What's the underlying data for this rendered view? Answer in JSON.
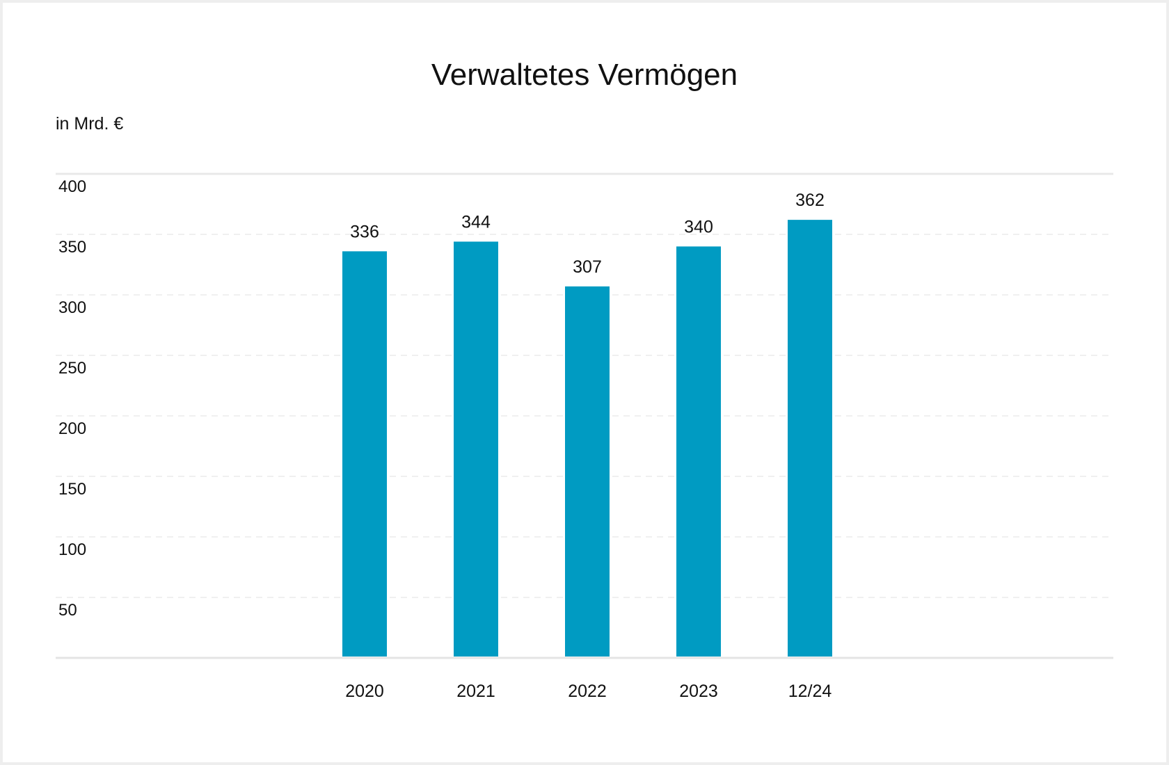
{
  "chart_data": {
    "type": "bar",
    "title": "Verwaltetes Vermögen",
    "unit_label": "in Mrd. €",
    "categories": [
      "2020",
      "2021",
      "2022",
      "2023",
      "12/24"
    ],
    "values": [
      336,
      344,
      307,
      340,
      362
    ],
    "value_labels": [
      "336",
      "344",
      "307",
      "340",
      "362"
    ],
    "yticks": [
      "50",
      "100",
      "150",
      "200",
      "250",
      "300",
      "350",
      "400"
    ],
    "ylim": [
      0,
      400
    ],
    "grid": true,
    "legend": "none",
    "bar_color": "#009bc2"
  }
}
